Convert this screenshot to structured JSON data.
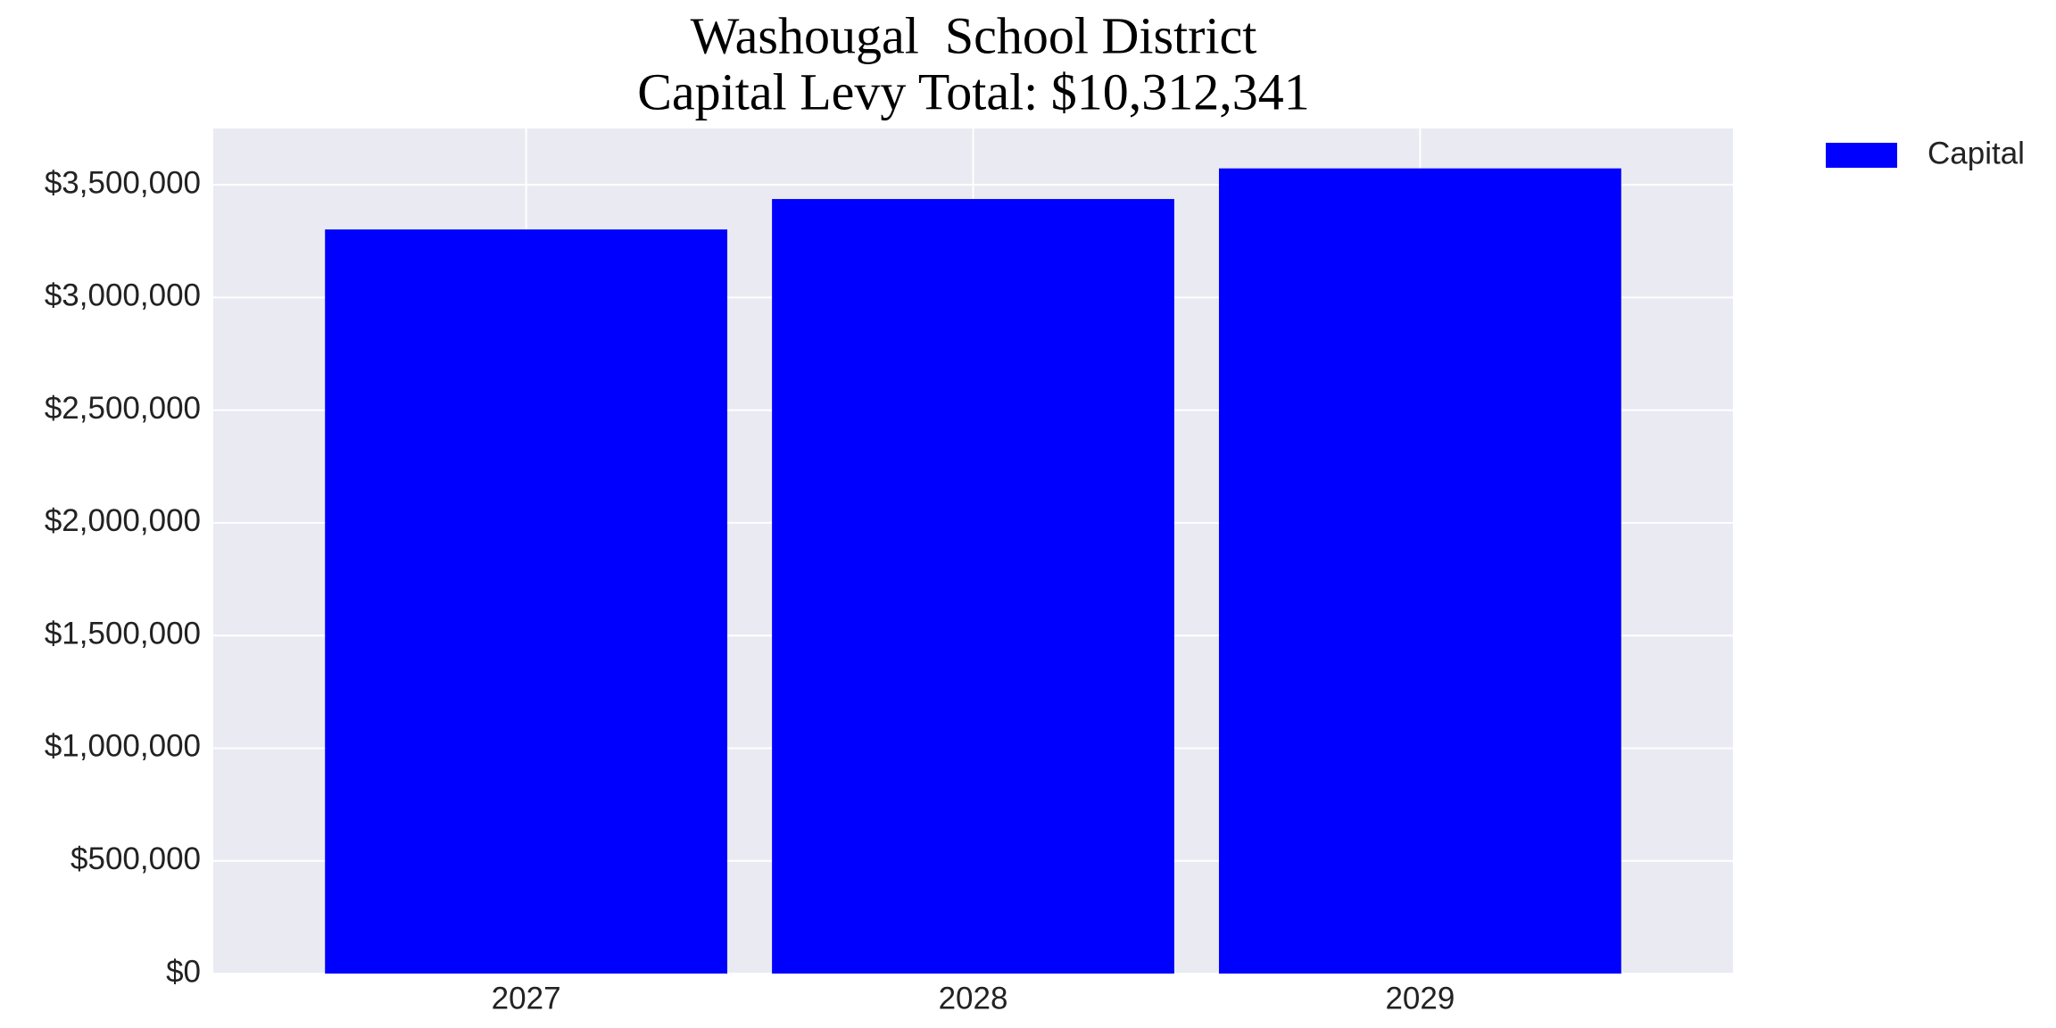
{
  "chart_data": {
    "type": "bar",
    "title": [
      "Washougal  School District",
      "Capital Levy Total: $10,312,341"
    ],
    "categories": [
      "2027",
      "2028",
      "2029"
    ],
    "series": [
      {
        "name": "Capital",
        "color": "#0000ff",
        "values": [
          3302000,
          3437000,
          3573000
        ]
      }
    ],
    "ylim": [
      0,
      3750000
    ],
    "yticks": [
      {
        "value": 0,
        "label": "$0"
      },
      {
        "value": 500000,
        "label": "$500,000"
      },
      {
        "value": 1000000,
        "label": "$1,000,000"
      },
      {
        "value": 1500000,
        "label": "$1,500,000"
      },
      {
        "value": 2000000,
        "label": "$2,000,000"
      },
      {
        "value": 2500000,
        "label": "$2,500,000"
      },
      {
        "value": 3000000,
        "label": "$3,000,000"
      },
      {
        "value": 3500000,
        "label": "$3,500,000"
      }
    ],
    "grid": true,
    "legend": "outside-upper-right"
  }
}
